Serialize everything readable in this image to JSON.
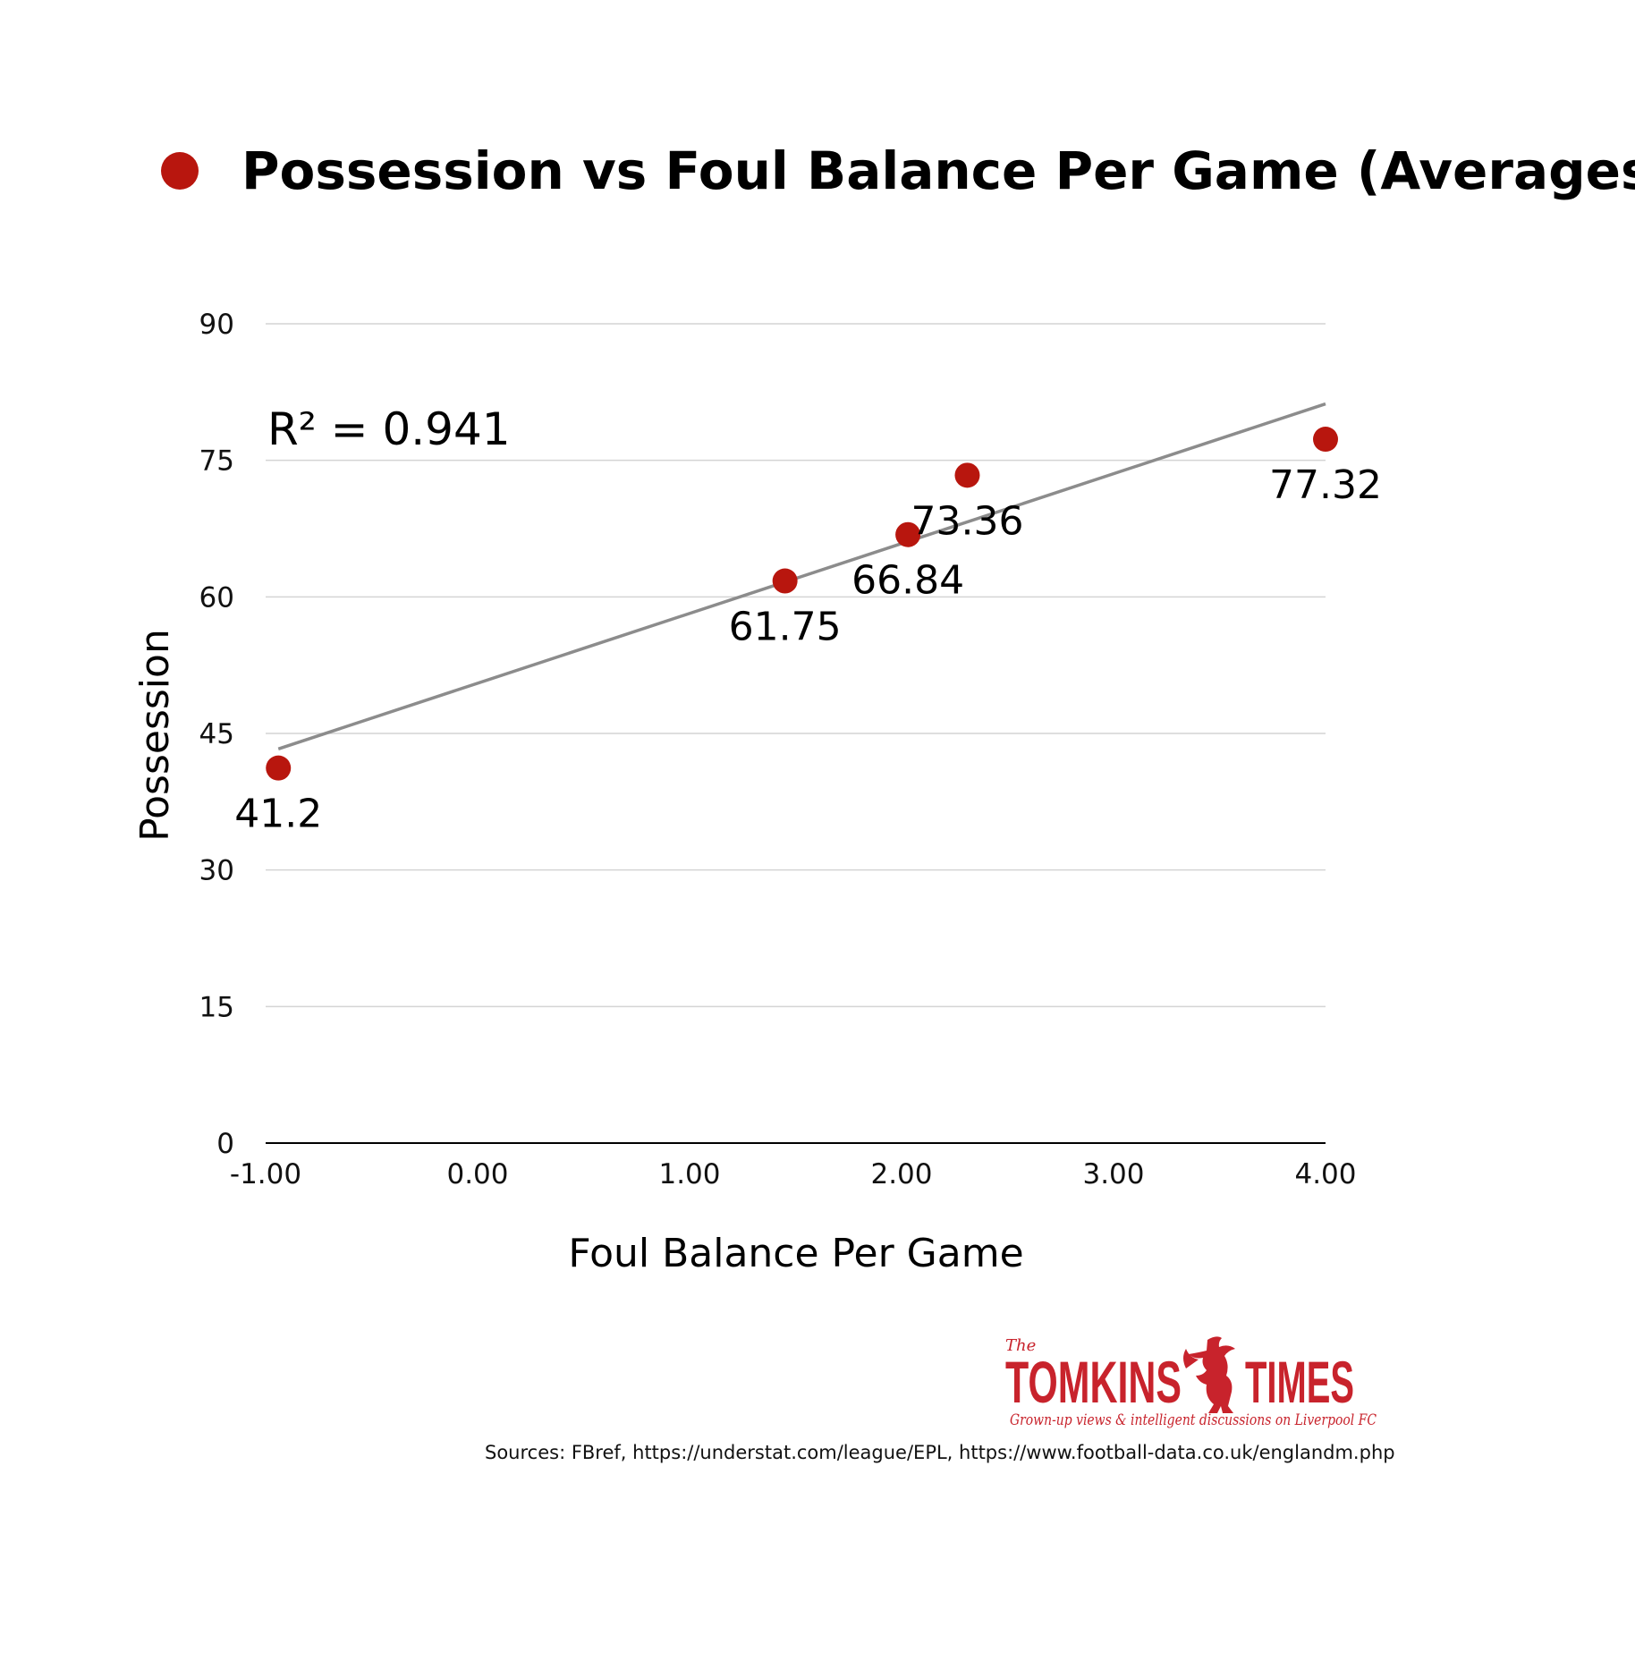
{
  "colors": {
    "marker": "#b8160e",
    "trendline": "#8c8c8c",
    "grid": "#d4d4d4",
    "axis": "#000000",
    "brand": "#c8232c"
  },
  "legend": {
    "icon": "red-dot-icon",
    "label": "Possession vs Foul Balance Per Game (Averages)"
  },
  "chart_data": {
    "type": "scatter",
    "title": "Possession vs Foul Balance Per Game (Averages)",
    "xlabel": "Foul Balance Per Game",
    "ylabel": "Possession",
    "xlim": [
      -1,
      4
    ],
    "ylim": [
      0,
      90
    ],
    "x_ticks": [
      -1,
      0,
      1,
      2,
      3,
      4
    ],
    "x_tick_labels": [
      "-1.00",
      "0.00",
      "1.00",
      "2.00",
      "3.00",
      "4.00"
    ],
    "y_ticks": [
      0,
      15,
      30,
      45,
      60,
      75,
      90
    ],
    "y_tick_labels": [
      "0",
      "15",
      "30",
      "45",
      "60",
      "75",
      "90"
    ],
    "grid": true,
    "legend_position": "top",
    "series": [
      {
        "name": "Possession vs Foul Balance Per Game (Averages)",
        "points": [
          {
            "x": -0.94,
            "y": 41.2,
            "label": "41.2"
          },
          {
            "x": 1.45,
            "y": 61.75,
            "label": "61.75"
          },
          {
            "x": 2.03,
            "y": 66.84,
            "label": "66.84"
          },
          {
            "x": 2.31,
            "y": 73.36,
            "label": "73.36"
          },
          {
            "x": 4.0,
            "y": 77.32,
            "label": "77.32"
          }
        ]
      }
    ],
    "trendline": {
      "type": "linear",
      "x_range": [
        -0.94,
        4.0
      ],
      "y_range": [
        43.3,
        81.2
      ],
      "label": "R² = 0.941"
    }
  },
  "branding": {
    "logo_prefix": "The",
    "logo_name_left": "TOMKINS",
    "logo_name_right": "TIMES",
    "logo_emblem": "liverbird-icon",
    "tagline": "Grown-up views & intelligent discussions on Liverpool FC"
  },
  "source": "Sources: FBref, https://understat.com/league/EPL, https://www.football-data.co.uk/englandm.php"
}
